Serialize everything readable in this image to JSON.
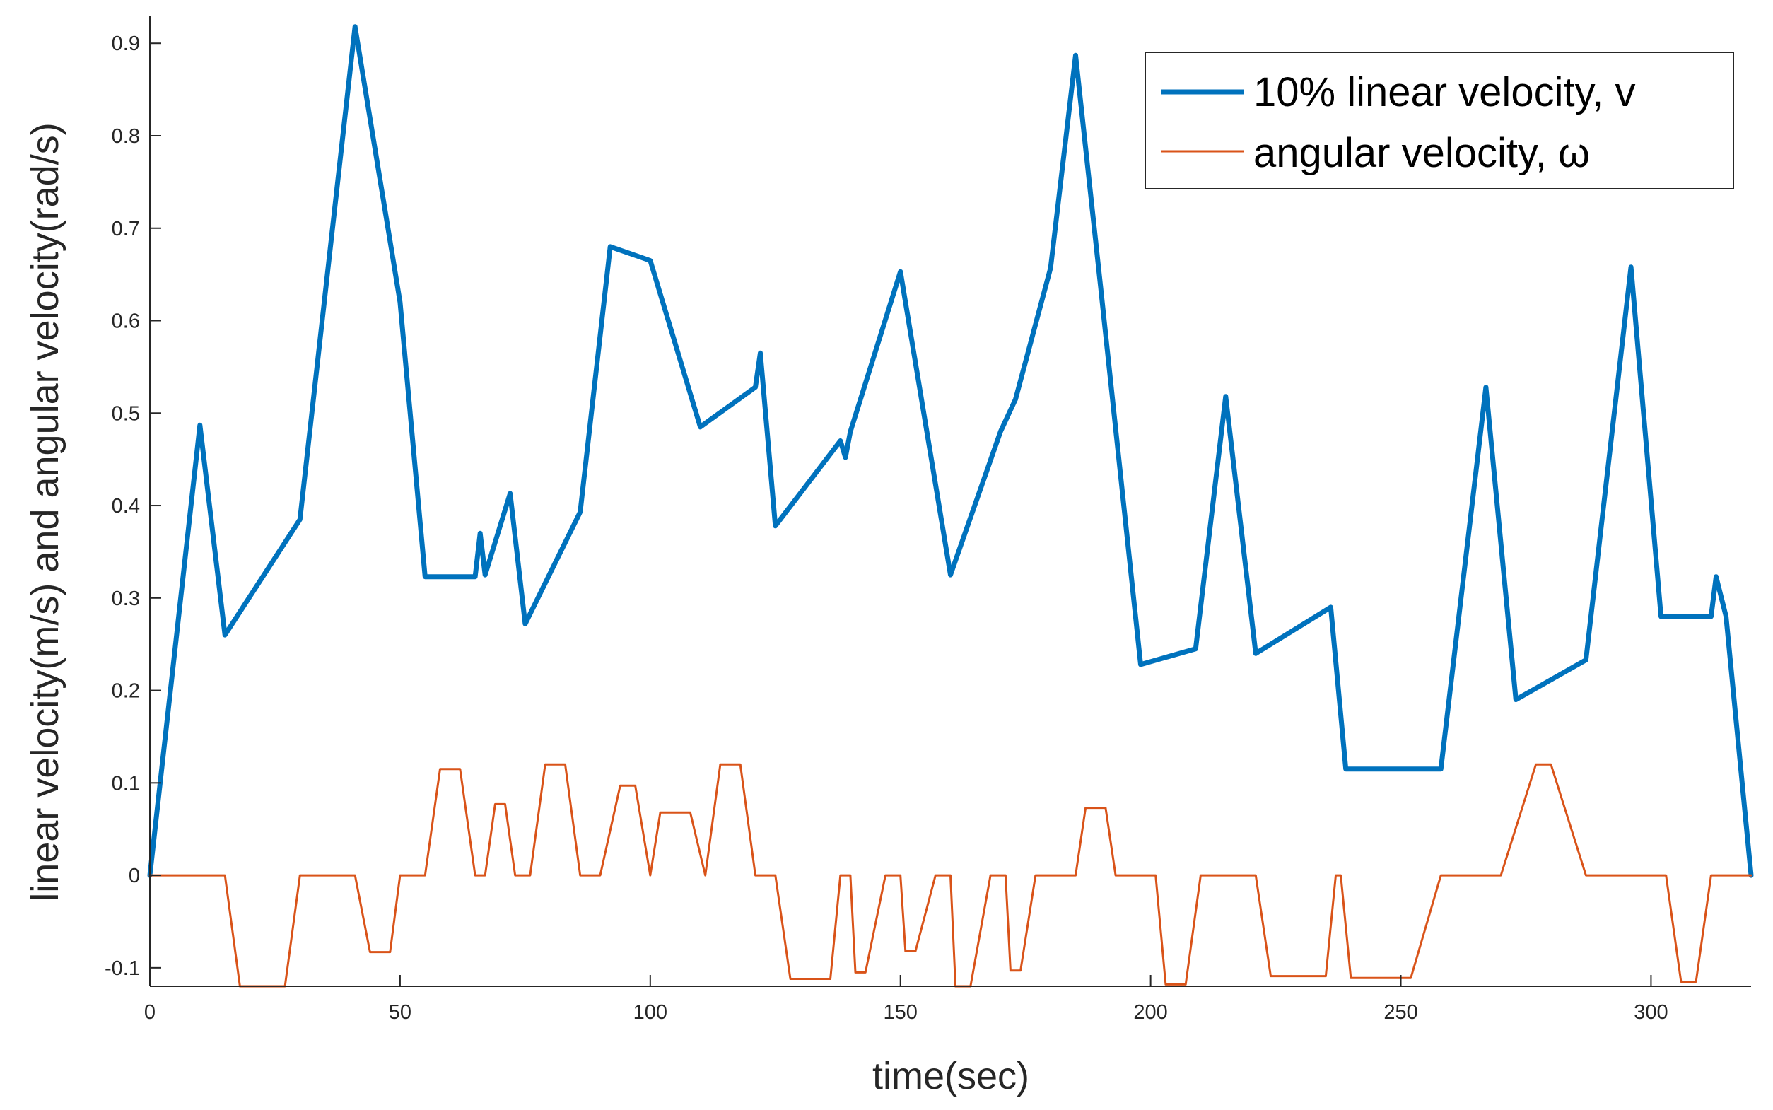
{
  "chart_data": {
    "type": "line",
    "xlabel": "time(sec)",
    "ylabel": "linear velocity(m/s) and angular velocity(rad/s)",
    "xlim": [
      0,
      320
    ],
    "ylim": [
      -0.12,
      0.93
    ],
    "xticks": [
      0,
      50,
      100,
      150,
      200,
      250,
      300
    ],
    "xtick_labels": [
      "0",
      "50",
      "100",
      "150",
      "200",
      "250",
      "300"
    ],
    "yticks": [
      -0.1,
      0,
      0.1,
      0.2,
      0.3,
      0.4,
      0.5,
      0.6,
      0.7,
      0.8,
      0.9
    ],
    "ytick_labels": [
      "-0.1",
      "0",
      "0.1",
      "0.2",
      "0.3",
      "0.4",
      "0.5",
      "0.6",
      "0.7",
      "0.8",
      "0.9"
    ],
    "grid": false,
    "legend_position": "top-right",
    "series": [
      {
        "name": "10% linear velocity, v",
        "color": "#0072BD",
        "x": [
          0,
          10,
          15,
          30,
          41,
          50,
          55,
          65,
          66,
          67,
          72,
          75,
          86,
          92,
          100,
          110,
          121,
          122,
          125,
          138,
          139,
          140,
          150,
          160,
          170,
          173,
          180,
          185,
          190,
          198,
          209,
          215,
          221,
          236,
          239,
          258,
          267,
          273,
          287,
          296,
          302,
          312,
          313,
          315,
          320
        ],
        "y": [
          0,
          0.487,
          0.26,
          0.385,
          0.918,
          0.62,
          0.323,
          0.323,
          0.37,
          0.325,
          0.413,
          0.272,
          0.393,
          0.68,
          0.665,
          0.485,
          0.528,
          0.565,
          0.378,
          0.47,
          0.452,
          0.48,
          0.653,
          0.325,
          0.48,
          0.515,
          0.657,
          0.887,
          0.637,
          0.228,
          0.245,
          0.518,
          0.24,
          0.29,
          0.115,
          0.115,
          0.528,
          0.19,
          0.233,
          0.658,
          0.28,
          0.28,
          0.323,
          0.28,
          0
        ]
      },
      {
        "name": "angular velocity, ω",
        "color": "#D95319",
        "x": [
          0,
          15,
          18,
          27,
          30,
          41,
          44,
          48,
          50,
          55,
          58,
          62,
          65,
          67,
          69,
          71,
          73,
          76,
          79,
          83,
          86,
          90,
          94,
          97,
          100,
          102,
          108,
          111,
          114,
          118,
          121,
          125,
          128,
          136,
          138,
          139,
          140,
          141,
          143,
          147,
          149,
          150,
          151,
          153,
          157,
          159,
          160,
          161,
          164,
          168,
          170,
          171,
          172,
          174,
          177,
          180,
          185,
          187,
          191,
          193,
          201,
          203,
          207,
          210,
          221,
          224,
          235,
          237,
          238,
          240,
          252,
          258,
          267,
          270,
          277,
          280,
          287,
          303,
          306,
          309,
          312,
          320
        ],
        "y": [
          0,
          0,
          -0.12,
          -0.12,
          0,
          0,
          -0.083,
          -0.083,
          0,
          0,
          0.115,
          0.115,
          0,
          0,
          0.077,
          0.077,
          0,
          0,
          0.12,
          0.12,
          0,
          0,
          0.097,
          0.097,
          0,
          0.068,
          0.068,
          0,
          0.12,
          0.12,
          0,
          0,
          -0.112,
          -0.112,
          0,
          0,
          0,
          -0.105,
          -0.105,
          0,
          0,
          0,
          -0.082,
          -0.082,
          0,
          0,
          0,
          -0.12,
          -0.12,
          0,
          0,
          0,
          -0.103,
          -0.103,
          0,
          0,
          0,
          0.073,
          0.073,
          0,
          0,
          -0.118,
          -0.118,
          0,
          0,
          -0.109,
          -0.109,
          0,
          0,
          -0.111,
          -0.111,
          0,
          0,
          0,
          0.12,
          0.12,
          0,
          0,
          -0.115,
          -0.115,
          0,
          0
        ]
      }
    ]
  }
}
